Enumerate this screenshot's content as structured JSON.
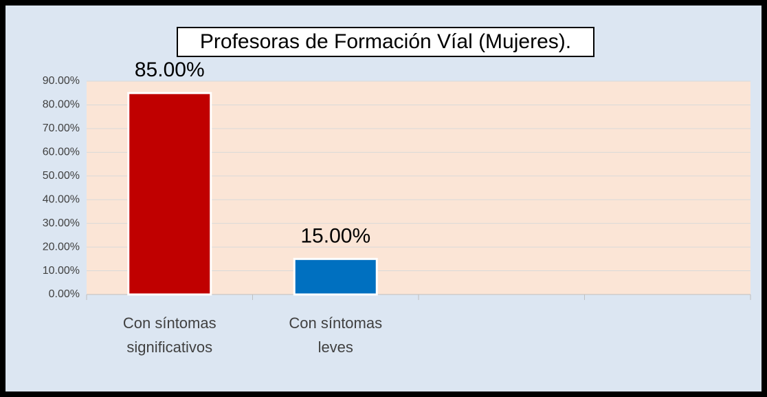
{
  "chart_data": {
    "type": "bar",
    "title": "Profesoras de Formación Víal (Mujeres).",
    "categories": [
      "Con síntomas significativos",
      "Con síntomas leves",
      null,
      null
    ],
    "values": [
      85,
      15,
      null,
      null
    ],
    "value_labels": [
      "85.00%",
      "15.00%",
      null,
      null
    ],
    "colors": [
      "#c00000",
      "#0070c0",
      null,
      null
    ],
    "ylim": [
      0,
      90
    ],
    "yticks": [
      {
        "value": 0,
        "label": "0.00%"
      },
      {
        "value": 10,
        "label": "10.00%"
      },
      {
        "value": 20,
        "label": "20.00%"
      },
      {
        "value": 30,
        "label": "30.00%"
      },
      {
        "value": 40,
        "label": "40.00%"
      },
      {
        "value": 50,
        "label": "50.00%"
      },
      {
        "value": 60,
        "label": "60.00%"
      },
      {
        "value": 70,
        "label": "70.00%"
      },
      {
        "value": 80,
        "label": "80.00%"
      },
      {
        "value": 90,
        "label": "90.00%"
      }
    ],
    "grid": true
  }
}
